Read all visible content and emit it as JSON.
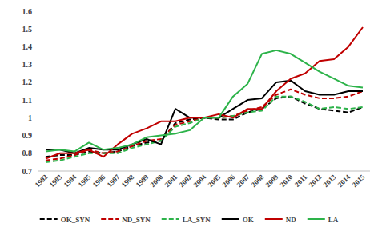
{
  "chart_data": {
    "type": "line",
    "categories": [
      "1992",
      "1993",
      "1994",
      "1995",
      "1996",
      "1997",
      "1998",
      "1999",
      "2000",
      "2001",
      "2002",
      "2004",
      "2005",
      "2006",
      "2007",
      "2008",
      "2009",
      "2010",
      "2011",
      "2012",
      "2013",
      "2014",
      "2015"
    ],
    "series": [
      {
        "name": "OK_SYN",
        "color": "#000000",
        "line_style": "dashed",
        "values": [
          0.78,
          0.79,
          0.79,
          0.81,
          0.8,
          0.81,
          0.84,
          0.86,
          0.87,
          0.97,
          0.99,
          1.0,
          0.99,
          0.99,
          1.03,
          1.05,
          1.11,
          1.12,
          1.08,
          1.05,
          1.04,
          1.03,
          1.06
        ]
      },
      {
        "name": "ND_SYN",
        "color": "#c00000",
        "line_style": "dashed",
        "values": [
          0.76,
          0.77,
          0.79,
          0.82,
          0.8,
          0.81,
          0.84,
          0.87,
          0.88,
          0.96,
          0.98,
          1.0,
          1.0,
          1.01,
          1.04,
          1.06,
          1.13,
          1.16,
          1.13,
          1.11,
          1.11,
          1.12,
          1.15
        ]
      },
      {
        "name": "LA_SYN",
        "color": "#2db34a",
        "line_style": "dashed",
        "values": [
          0.75,
          0.76,
          0.78,
          0.8,
          0.8,
          0.8,
          0.83,
          0.85,
          0.87,
          0.95,
          0.97,
          1.0,
          1.0,
          1.01,
          1.03,
          1.04,
          1.12,
          1.12,
          1.09,
          1.05,
          1.06,
          1.05,
          1.06
        ]
      },
      {
        "name": "OK",
        "color": "#000000",
        "line_style": "solid",
        "values": [
          0.82,
          0.82,
          0.8,
          0.83,
          0.82,
          0.82,
          0.85,
          0.88,
          0.85,
          1.05,
          1.0,
          1.0,
          1.0,
          1.05,
          1.1,
          1.11,
          1.2,
          1.21,
          1.15,
          1.13,
          1.13,
          1.15,
          1.15
        ]
      },
      {
        "name": "ND",
        "color": "#c00000",
        "line_style": "solid",
        "values": [
          0.77,
          0.8,
          0.8,
          0.82,
          0.78,
          0.85,
          0.91,
          0.94,
          0.98,
          0.98,
          1.0,
          1.0,
          1.02,
          1.0,
          1.05,
          1.05,
          1.15,
          1.22,
          1.25,
          1.32,
          1.33,
          1.4,
          1.51
        ]
      },
      {
        "name": "LA",
        "color": "#2db34a",
        "line_style": "solid",
        "values": [
          0.81,
          0.82,
          0.81,
          0.86,
          0.82,
          0.83,
          0.85,
          0.89,
          0.9,
          0.91,
          0.93,
          1.0,
          1.0,
          1.12,
          1.19,
          1.36,
          1.38,
          1.36,
          1.31,
          1.26,
          1.22,
          1.18,
          1.17
        ]
      }
    ],
    "ylim": [
      0.7,
      1.6
    ],
    "yticks": [
      0.7,
      0.8,
      0.9,
      1,
      1.1,
      1.2,
      1.3,
      1.4,
      1.5,
      1.6
    ],
    "grid": false,
    "legend": "bottom"
  }
}
